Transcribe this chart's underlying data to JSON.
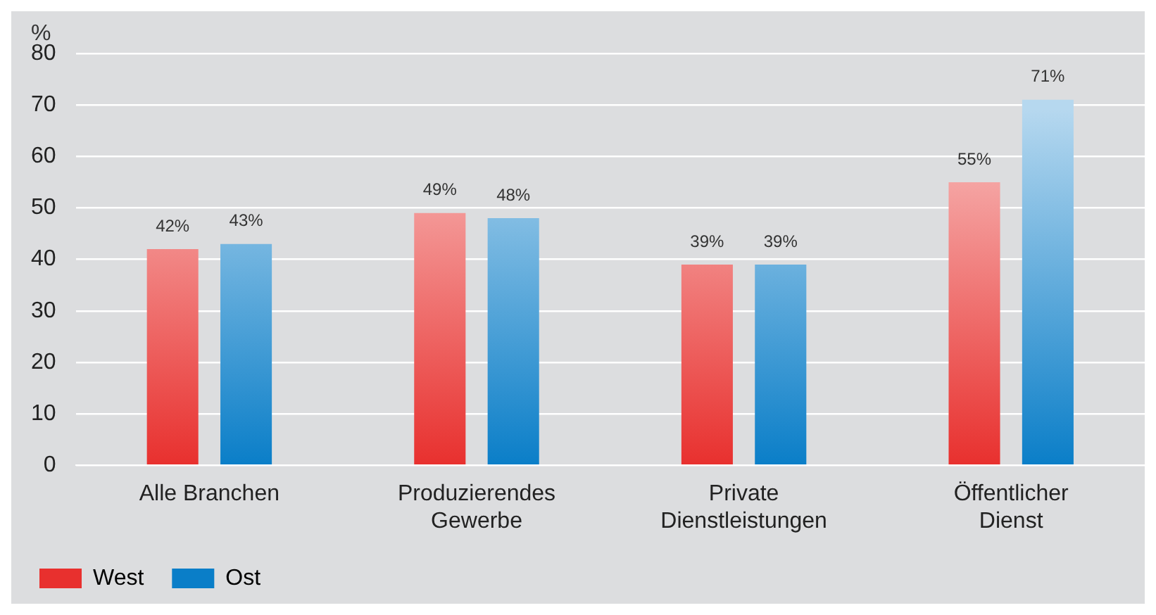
{
  "chart_data": {
    "type": "bar",
    "ylabel": "%",
    "categories": [
      "Alle Branchen",
      "Produzierendes\nGewerbe",
      "Private\nDienstleistungen",
      "Öffentlicher\nDienst"
    ],
    "series": [
      {
        "name": "West",
        "color": "#e8302e",
        "values": [
          42,
          49,
          39,
          55
        ],
        "value_labels": [
          "42%",
          "49%",
          "39%",
          "55%"
        ]
      },
      {
        "name": "Ost",
        "color": "#0a7ec8",
        "values": [
          43,
          48,
          39,
          71
        ],
        "value_labels": [
          "43%",
          "48%",
          "39%",
          "71%"
        ]
      }
    ],
    "ylim": [
      0,
      80
    ],
    "yticks": [
      0,
      10,
      20,
      30,
      40,
      50,
      60,
      70,
      80
    ],
    "grid": "y",
    "legend": "bottom left"
  }
}
